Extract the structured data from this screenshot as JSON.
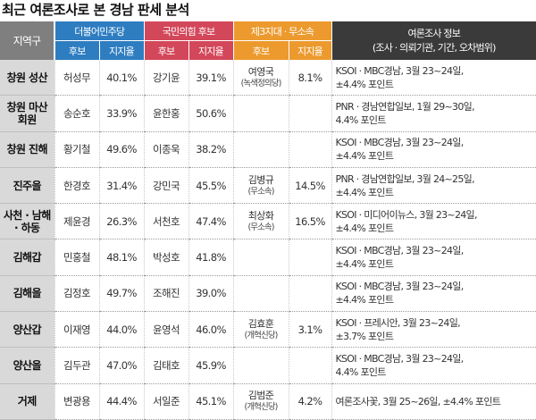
{
  "title": "최근 여론조사로 본 경남 판세 분석",
  "headers": {
    "region": "지역구",
    "dem": "더불어민주당",
    "ppp": "국민의힘 후보",
    "ind": "제3지대 · 무소속",
    "info_line1": "여론조사 정보",
    "info_line2": "(조사 · 의뢰기관, 기간, 오차범위)",
    "candidate": "후보",
    "support": "지지율"
  },
  "rows": [
    {
      "region": "창원 성산",
      "dem_name": "허성무",
      "dem_pct": "40.1%",
      "ppp_name": "강기윤",
      "ppp_pct": "39.1%",
      "ind_name": "여영국",
      "ind_party": "(녹색정의당)",
      "ind_pct": "8.1%",
      "info_1": "KSOI · MBC경남, 3월 23~24일,",
      "info_2": "±4.4% 포인트"
    },
    {
      "region_1": "창원 마산",
      "region_2": "회원",
      "dem_name": "송순호",
      "dem_pct": "33.9%",
      "ppp_name": "윤한홍",
      "ppp_pct": "50.6%",
      "ind_name": "",
      "ind_party": "",
      "ind_pct": "",
      "info_1": "PNR · 경남연합일보, 1월 29~30일,",
      "info_2": "4.4% 포인트"
    },
    {
      "region": "창원 진해",
      "dem_name": "황기철",
      "dem_pct": "49.6%",
      "ppp_name": "이종욱",
      "ppp_pct": "38.2%",
      "ind_name": "",
      "ind_party": "",
      "ind_pct": "",
      "info_1": "KSOI · MBC경남, 3월 23~24일,",
      "info_2": "±4.4% 포인트"
    },
    {
      "region": "진주을",
      "dem_name": "한경호",
      "dem_pct": "31.4%",
      "ppp_name": "강민국",
      "ppp_pct": "45.5%",
      "ind_name": "김병규",
      "ind_party": "(무소속)",
      "ind_pct": "14.5%",
      "info_1": "PNR · 경남연합일보, 3월 24~25일,",
      "info_2": "±4.4% 포인트"
    },
    {
      "region_1": "사천 · 남해",
      "region_2": "· 하동",
      "dem_name": "제윤경",
      "dem_pct": "26.3%",
      "ppp_name": "서천호",
      "ppp_pct": "47.4%",
      "ind_name": "최상화",
      "ind_party": "(무소속)",
      "ind_pct": "16.5%",
      "info_1": "KSOI · 미디어이뉴스, 3월 23~24일,",
      "info_2": "±4.4% 포인트"
    },
    {
      "region": "김해갑",
      "dem_name": "민홍철",
      "dem_pct": "48.1%",
      "ppp_name": "박성호",
      "ppp_pct": "41.8%",
      "ind_name": "",
      "ind_party": "",
      "ind_pct": "",
      "info_1": "KSOI · MBC경남, 3월 23~24일,",
      "info_2": "±4.4% 포인트"
    },
    {
      "region": "김해을",
      "dem_name": "김정호",
      "dem_pct": "49.7%",
      "ppp_name": "조해진",
      "ppp_pct": "39.0%",
      "ind_name": "",
      "ind_party": "",
      "ind_pct": "",
      "info_1": "KSOI · MBC경남, 3월 23~24일,",
      "info_2": "±4.4% 포인트"
    },
    {
      "region": "양산갑",
      "dem_name": "이재영",
      "dem_pct": "44.0%",
      "ppp_name": "윤영석",
      "ppp_pct": "46.0%",
      "ind_name": "김효훈",
      "ind_party": "(개혁신당)",
      "ind_pct": "3.1%",
      "info_1": "KSOI · 프레시안, 3월 23~24일,",
      "info_2": "±3.7% 포인트"
    },
    {
      "region": "양산을",
      "dem_name": "김두관",
      "dem_pct": "47.0%",
      "ppp_name": "김태호",
      "ppp_pct": "45.9%",
      "ind_name": "",
      "ind_party": "",
      "ind_pct": "",
      "info_1": "KSOI · MBC경남, 3월 23~24일,",
      "info_2": "4.4% 포인트"
    },
    {
      "region": "거제",
      "dem_name": "변광용",
      "dem_pct": "44.4%",
      "ppp_name": "서일준",
      "ppp_pct": "45.1%",
      "ind_name": "김범준",
      "ind_party": "(개혁신당)",
      "ind_pct": "4.2%",
      "info_1": "여론조사꽃, 3월 25~26일, ±4.4% 포인트",
      "info_2": ""
    }
  ],
  "colors": {
    "democratic": "#2e7dc1",
    "people_power": "#d3475a",
    "independent": "#ec9a2e",
    "region_header": "#7f7f7f",
    "info_header": "#3a3a3a",
    "region_cell": "#d9d9d9"
  }
}
